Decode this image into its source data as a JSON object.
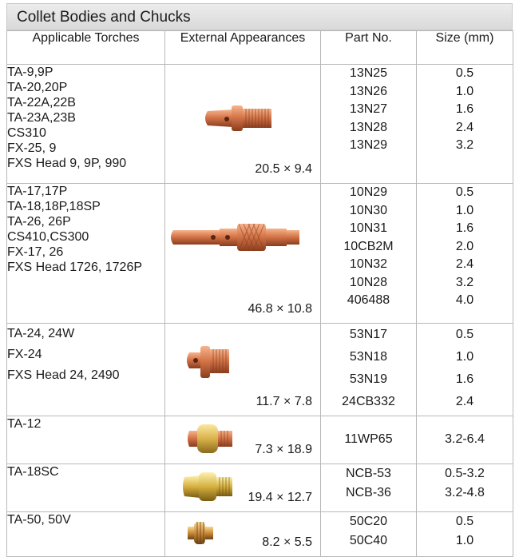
{
  "title": "Collet Bodies and Chucks",
  "headers": {
    "torches": "Applicable Torches",
    "appearance": "External Appearances",
    "part_no": "Part No.",
    "size": "Size (mm)"
  },
  "rows": [
    {
      "torches": [
        "TA-9,9P",
        "TA-20,20P",
        "TA-22A,22B",
        "TA-23A,23B",
        "CS310",
        "FX-25, 9",
        "FXS Head 9, 9P, 990"
      ],
      "dimension": "20.5 × 9.4",
      "parts": [
        "13N25",
        "13N26",
        "13N27",
        "13N28",
        "13N29"
      ],
      "sizes": [
        "0.5",
        "1.0",
        "1.6",
        "2.4",
        "3.2"
      ]
    },
    {
      "torches": [
        "TA-17,17P",
        "TA-18,18P,18SP",
        "TA-26, 26P",
        "CS410,CS300",
        "FX-17, 26",
        "FXS Head 1726, 1726P"
      ],
      "dimension": "46.8 × 10.8",
      "parts": [
        "10N29",
        "10N30",
        "10N31",
        "10CB2M",
        "10N32",
        "10N28",
        "406488"
      ],
      "sizes": [
        "0.5",
        "1.0",
        "1.6",
        "2.0",
        "2.4",
        "3.2",
        "4.0"
      ]
    },
    {
      "torches": [
        "TA-24, 24W",
        "FX-24",
        "FXS Head 24, 2490"
      ],
      "dimension": "11.7 × 7.8",
      "parts": [
        "53N17",
        "53N18",
        "53N19",
        "24CB332"
      ],
      "sizes": [
        "0.5",
        "1.0",
        "1.6",
        "2.4"
      ]
    },
    {
      "torches": [
        "TA-12"
      ],
      "dimension": "7.3 × 18.9",
      "parts": [
        "11WP65"
      ],
      "sizes": [
        "3.2-6.4"
      ]
    },
    {
      "torches": [
        "TA-18SC"
      ],
      "dimension": "19.4 × 12.7",
      "parts": [
        "NCB-53",
        "NCB-36"
      ],
      "sizes": [
        "0.5-3.2",
        "3.2-4.8"
      ]
    },
    {
      "torches": [
        "TA-50, 50V"
      ],
      "dimension": "8.2 × 5.5",
      "parts": [
        "50C20",
        "50C40"
      ],
      "sizes": [
        "0.5",
        "1.0"
      ]
    }
  ]
}
